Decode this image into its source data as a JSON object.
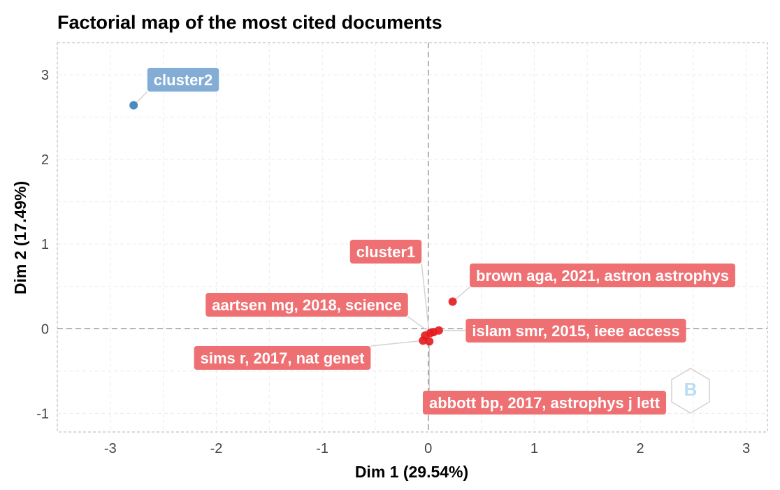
{
  "chart_data": {
    "type": "scatter",
    "title": "Factorial map of the most cited documents",
    "xlabel": "Dim 1 (29.54%)",
    "ylabel": "Dim 2 (17.49%)",
    "xlim": [
      -3.5,
      3.2
    ],
    "ylim": [
      -1.22,
      3.38
    ],
    "xticks": [
      "-3",
      "-2",
      "-1",
      "0",
      "1",
      "2",
      "3"
    ],
    "yticks": [
      "-1",
      "0",
      "1",
      "2",
      "3"
    ],
    "grid": true,
    "legend": "none",
    "colors": {
      "cluster1": "#e41a1c",
      "cluster2": "#377eb8",
      "label1": "#ef7072",
      "label2": "#84add5"
    },
    "series": [
      {
        "name": "cluster1",
        "points": [
          {
            "label": "brown aga, 2021, astron astrophys",
            "x": 0.23,
            "y": 0.32
          },
          {
            "label": "islam smr, 2015, ieee access",
            "x": 0.1,
            "y": -0.02
          },
          {
            "label": "aartsen mg, 2018, science",
            "x": 0.02,
            "y": -0.05
          },
          {
            "label": "sims r, 2017, nat genet",
            "x": -0.05,
            "y": -0.14
          },
          {
            "label": "abbott bp, 2017, astrophys j lett",
            "x": 0.01,
            "y": -0.15
          },
          {
            "label": "",
            "x": -0.03,
            "y": -0.08
          },
          {
            "label": "",
            "x": 0.05,
            "y": -0.04
          }
        ],
        "centroid": {
          "label": "cluster1",
          "x": 0.01,
          "y": -0.07
        }
      },
      {
        "name": "cluster2",
        "points": [
          {
            "label": "",
            "x": -2.78,
            "y": 2.64
          }
        ],
        "centroid": {
          "label": "cluster2",
          "x": -2.78,
          "y": 2.64
        }
      }
    ]
  }
}
